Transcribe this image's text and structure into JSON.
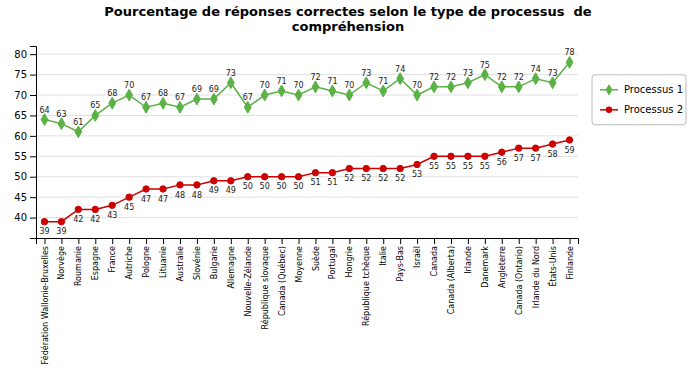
{
  "chart_data": {
    "type": "line",
    "title": "Pourcentage de réponses correctes selon le type de processus  de\ncompréhension",
    "categories": [
      "Fédération Wallonie-Bruxelles",
      "Norvège",
      "Roumanie",
      "Espagne",
      "France",
      "Autriche",
      "Pologne",
      "Lituanie",
      "Australie",
      "Slovénie",
      "Bulgarie",
      "Allemagne",
      "Nouvelle-Zélande",
      "République slovaque",
      "Canada (Québec)",
      "Moyenne",
      "Suède",
      "Portugal",
      "Hongrie",
      "République tchèque",
      "Italie",
      "Pays-Bas",
      "Israël",
      "Canada",
      "Canada (Alberta)",
      "Irlande",
      "Danemark",
      "Angleterre",
      "Canada (Ontario)",
      "Irlande du Nord",
      "États-Unis",
      "Finlande"
    ],
    "series": [
      {
        "name": "Processus 1",
        "color": "#5AB145",
        "marker": "diamond",
        "values": [
          64,
          63,
          61,
          65,
          68,
          70,
          67,
          68,
          67,
          69,
          69,
          73,
          67,
          70,
          71,
          70,
          72,
          71,
          70,
          73,
          71,
          74,
          70,
          72,
          72,
          73,
          75,
          72,
          72,
          74,
          73,
          78
        ]
      },
      {
        "name": "Processus 2",
        "color": "#CC0000",
        "marker": "circle",
        "values": [
          39,
          39,
          42,
          42,
          43,
          45,
          47,
          47,
          48,
          48,
          49,
          49,
          50,
          50,
          50,
          50,
          51,
          51,
          52,
          52,
          52,
          52,
          53,
          55,
          55,
          55,
          55,
          56,
          57,
          57,
          58,
          59
        ]
      }
    ],
    "ylim": [
      35,
      82
    ],
    "yticks": [
      40,
      45,
      50,
      55,
      60,
      65,
      70,
      75,
      80
    ],
    "grid": true,
    "legend": "right",
    "data_labels": true
  }
}
